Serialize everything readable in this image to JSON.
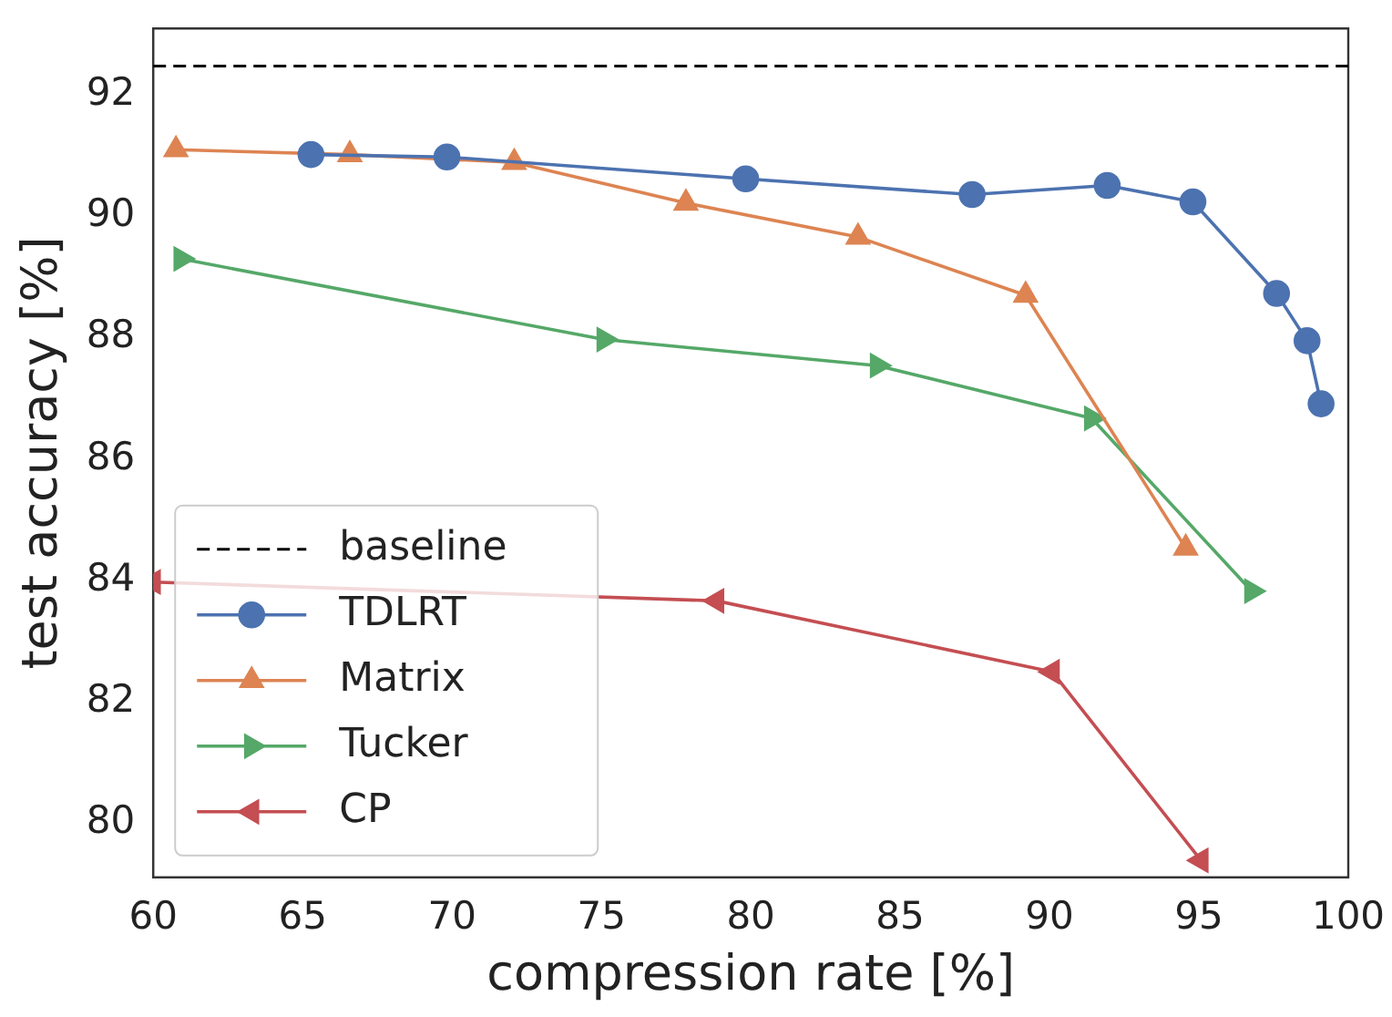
{
  "chart_data": {
    "type": "line",
    "xlabel": "compression rate [%]",
    "ylabel": "test accuracy [%]",
    "xlim": [
      60,
      100
    ],
    "xticks": [
      60,
      65,
      70,
      75,
      80,
      85,
      90,
      95,
      100
    ],
    "ylim": [
      79.1,
      93.1
    ],
    "yticks": [
      80,
      82,
      84,
      86,
      88,
      90,
      92
    ],
    "grid": false,
    "legend": "bottom left",
    "ref_lines": [
      {
        "axis": "y",
        "value": 92.48,
        "label": "baseline",
        "color": "#000000",
        "line_style": "dashed"
      }
    ],
    "series": [
      {
        "name": "TDLRT",
        "color": "#4c72b0",
        "marker": "circle",
        "x": [
          65.28,
          69.83,
          79.83,
          87.41,
          91.93,
          94.8,
          97.6,
          98.62,
          99.09
        ],
        "values": [
          91.02,
          90.98,
          90.62,
          90.36,
          90.51,
          90.24,
          88.73,
          87.95,
          86.91
        ]
      },
      {
        "name": "Matrix",
        "color": "#dd8452",
        "marker": "triangle",
        "x": [
          60.76,
          66.58,
          72.08,
          77.83,
          83.59,
          89.2,
          94.56
        ],
        "values": [
          91.1,
          91.02,
          90.89,
          90.22,
          89.66,
          88.7,
          84.53
        ]
      },
      {
        "name": "Tucker",
        "color": "#55a868",
        "marker": "triangle-right",
        "x": [
          60.93,
          75.09,
          84.24,
          91.41,
          96.77
        ],
        "values": [
          89.3,
          87.97,
          87.54,
          86.67,
          83.82
        ]
      },
      {
        "name": "CP",
        "color": "#c44e52",
        "marker": "triangle-left",
        "x": [
          60.0,
          78.86,
          90.09,
          95.07
        ],
        "values": [
          83.97,
          83.66,
          82.49,
          79.38
        ]
      }
    ]
  }
}
